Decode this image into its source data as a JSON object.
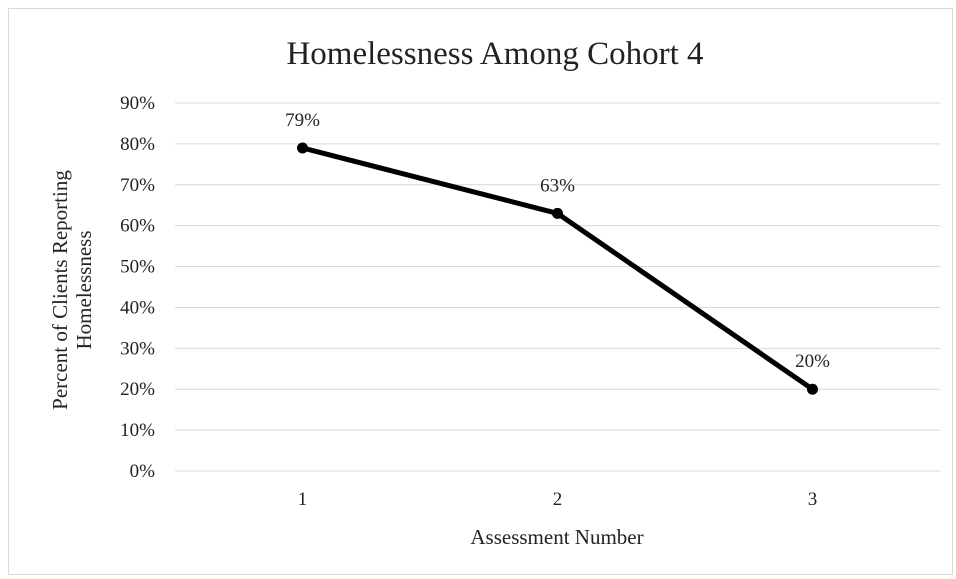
{
  "chart_data": {
    "type": "line",
    "title": "Homelessness Among Cohort 4",
    "xlabel": "Assessment Number",
    "ylabel_line1": "Percent of Clients Reporting",
    "ylabel_line2": "Homelessness",
    "categories": [
      "1",
      "2",
      "3"
    ],
    "series": [
      {
        "values": [
          79,
          63,
          20
        ],
        "labels": [
          "79%",
          "63%",
          "20%"
        ],
        "color": "#000000"
      }
    ],
    "ylim": [
      0,
      90
    ],
    "yticks": [
      "0%",
      "10%",
      "20%",
      "30%",
      "40%",
      "50%",
      "60%",
      "70%",
      "80%",
      "90%"
    ],
    "grid": true,
    "legend": "none"
  }
}
